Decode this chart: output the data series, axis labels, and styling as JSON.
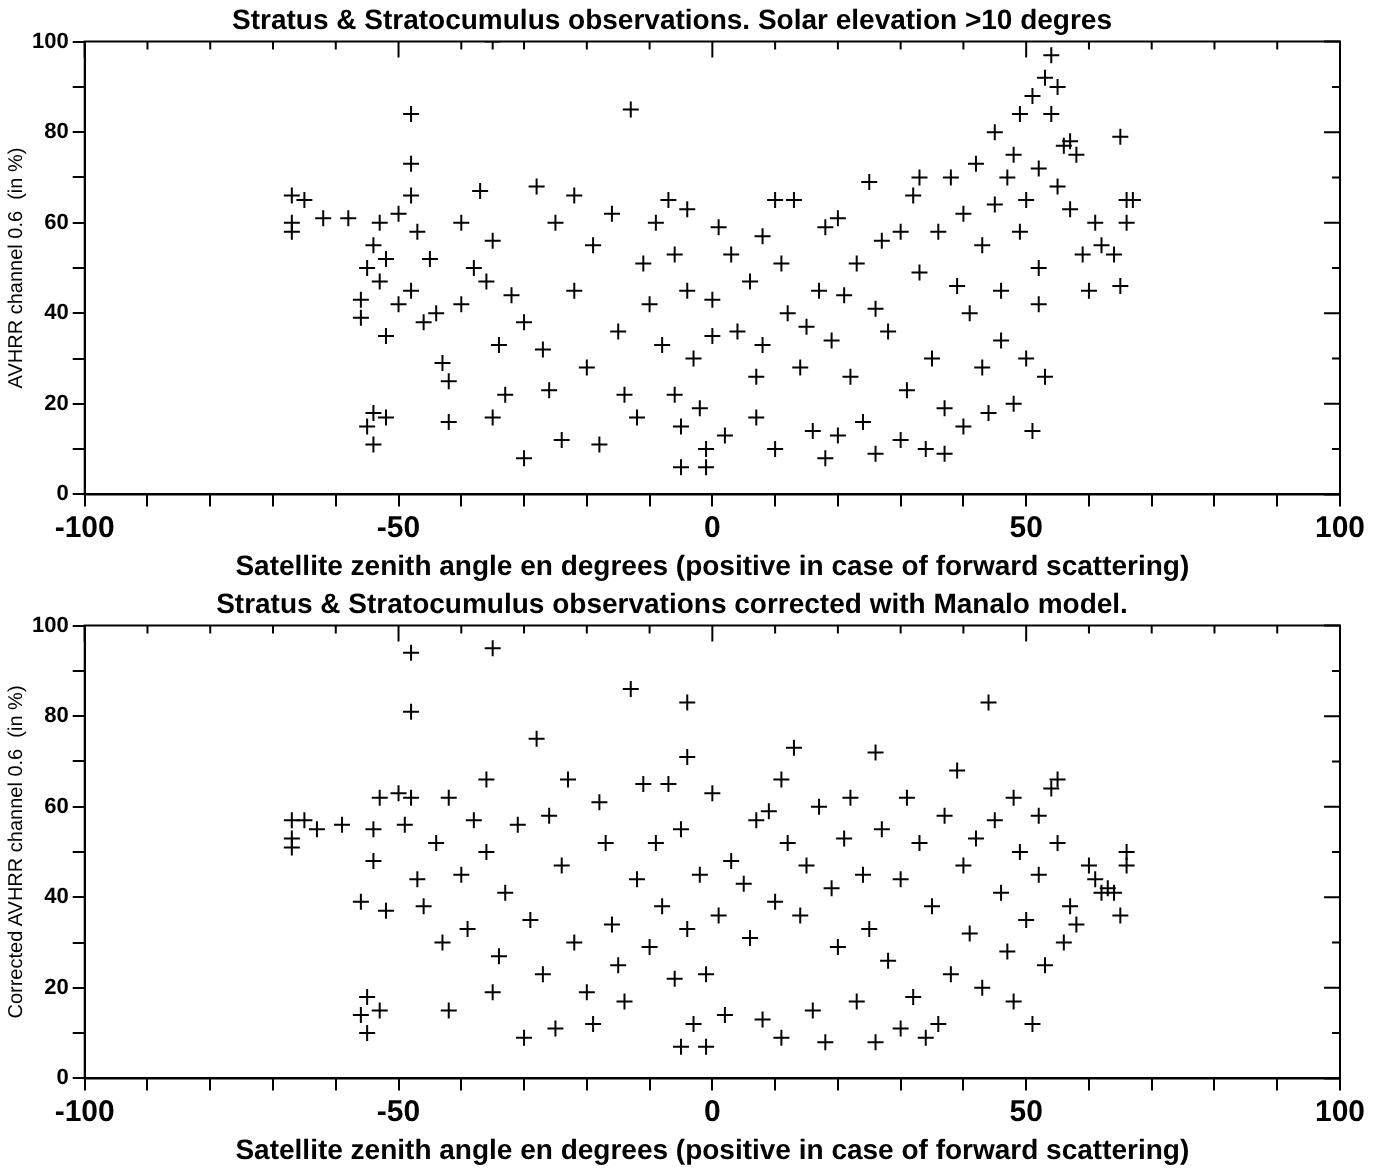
{
  "chart_data": [
    {
      "type": "scatter",
      "title": "Stratus & Stratocumulus observations. Solar elevation >10 degres",
      "xlabel": "Satellite zenith angle en degrees (positive in case of forward scattering)",
      "ylabel": "AVHRR channel 0.6  (in %)",
      "marker": "cross",
      "color": "#000000",
      "grid": false,
      "legend": false,
      "xlim": [
        -100,
        100
      ],
      "ylim": [
        0,
        100
      ],
      "xticks": [
        -100,
        {
          "value": -90,
          "label": null
        },
        {
          "value": -80,
          "label": null
        },
        {
          "value": -70,
          "label": null
        },
        {
          "value": -60,
          "label": null
        },
        -50,
        {
          "value": -40,
          "label": null
        },
        {
          "value": -30,
          "label": null
        },
        {
          "value": -20,
          "label": null
        },
        {
          "value": -10,
          "label": null
        },
        0,
        {
          "value": 10,
          "label": null
        },
        {
          "value": 20,
          "label": null
        },
        {
          "value": 30,
          "label": null
        },
        {
          "value": 40,
          "label": null
        },
        50,
        {
          "value": 60,
          "label": null
        },
        {
          "value": 70,
          "label": null
        },
        {
          "value": 80,
          "label": null
        },
        {
          "value": 90,
          "label": null
        },
        100
      ],
      "yticks": [
        0,
        {
          "value": 10,
          "label": null
        },
        20,
        {
          "value": 30,
          "label": null
        },
        40,
        {
          "value": 50,
          "label": null
        },
        60,
        {
          "value": 70,
          "label": null
        },
        80,
        {
          "value": 90,
          "label": null
        },
        100
      ],
      "x": [
        -67,
        -67,
        -67,
        -65,
        -62,
        -58,
        -56,
        -56,
        -55,
        -54,
        -53,
        -53,
        -52,
        -52,
        -55,
        -54,
        -54,
        -52,
        -50,
        -50,
        -48,
        -48,
        -48,
        -48,
        -47,
        -46,
        -45,
        -44,
        -43,
        -42,
        -42,
        -40,
        -40,
        -38,
        -37,
        -36,
        -35,
        -35,
        -35,
        -34,
        -33,
        -32,
        -30,
        -30,
        -28,
        -27,
        -26,
        -25,
        -24,
        -22,
        -22,
        -20,
        -19,
        -18,
        -16,
        -15,
        -14,
        -13,
        -12,
        -11,
        -10,
        -9,
        -8,
        -7,
        -6,
        -6,
        -5,
        -5,
        -4,
        -4,
        -3,
        -2,
        -1,
        -1,
        0,
        0,
        1,
        2,
        3,
        4,
        6,
        7,
        7,
        8,
        8,
        10,
        10,
        11,
        12,
        13,
        14,
        15,
        16,
        17,
        18,
        18,
        19,
        20,
        20,
        21,
        22,
        23,
        24,
        25,
        26,
        26,
        27,
        28,
        30,
        30,
        31,
        32,
        33,
        33,
        34,
        35,
        36,
        37,
        37,
        38,
        39,
        40,
        40,
        41,
        42,
        43,
        43,
        44,
        45,
        45,
        46,
        46,
        47,
        48,
        48,
        49,
        49,
        50,
        50,
        51,
        51,
        52,
        52,
        52,
        53,
        53,
        54,
        54,
        55,
        55,
        56,
        57,
        57,
        58,
        59,
        60,
        61,
        62,
        64,
        65,
        65,
        66,
        66,
        67
      ],
      "values": [
        66,
        60,
        58,
        65,
        61,
        61,
        43,
        39,
        50,
        55,
        60,
        47,
        52,
        35,
        15,
        18,
        11,
        17,
        42,
        62,
        84,
        73,
        66,
        45,
        58,
        38,
        52,
        40,
        29,
        25,
        16,
        42,
        60,
        50,
        67,
        47,
        100,
        56,
        17,
        33,
        22,
        44,
        8,
        38,
        68,
        32,
        23,
        60,
        12,
        66,
        45,
        28,
        55,
        11,
        62,
        36,
        22,
        85,
        17,
        51,
        42,
        60,
        33,
        65,
        53,
        22,
        15,
        6,
        63,
        45,
        30,
        19,
        10,
        6,
        43,
        35,
        59,
        13,
        53,
        36,
        47,
        26,
        17,
        57,
        33,
        10,
        65,
        51,
        40,
        65,
        28,
        37,
        14,
        45,
        59,
        8,
        34,
        13,
        61,
        44,
        26,
        51,
        16,
        69,
        9,
        41,
        56,
        36,
        12,
        58,
        23,
        66,
        49,
        70,
        10,
        30,
        58,
        19,
        9,
        70,
        46,
        62,
        15,
        40,
        73,
        55,
        28,
        18,
        80,
        64,
        45,
        34,
        70,
        75,
        20,
        84,
        58,
        65,
        30,
        14,
        88,
        72,
        50,
        42,
        92,
        26,
        97,
        84,
        68,
        90,
        77,
        63,
        78,
        75,
        53,
        45,
        60,
        55,
        53,
        46,
        79,
        60,
        65,
        65
      ]
    },
    {
      "type": "scatter",
      "title": "Stratus & Stratocumulus observations corrected with Manalo model.",
      "xlabel": "Satellite zenith angle en degrees (positive in case of forward scattering)",
      "ylabel": "Corrected AVHRR channel 0.6  (in %)",
      "marker": "cross",
      "color": "#000000",
      "grid": false,
      "legend": false,
      "xlim": [
        -100,
        100
      ],
      "ylim": [
        0,
        100
      ],
      "xticks": [
        -100,
        {
          "value": -90,
          "label": null
        },
        {
          "value": -80,
          "label": null
        },
        {
          "value": -70,
          "label": null
        },
        {
          "value": -60,
          "label": null
        },
        -50,
        {
          "value": -40,
          "label": null
        },
        {
          "value": -30,
          "label": null
        },
        {
          "value": -20,
          "label": null
        },
        {
          "value": -10,
          "label": null
        },
        0,
        {
          "value": 10,
          "label": null
        },
        {
          "value": 20,
          "label": null
        },
        {
          "value": 30,
          "label": null
        },
        {
          "value": 40,
          "label": null
        },
        50,
        {
          "value": 60,
          "label": null
        },
        {
          "value": 70,
          "label": null
        },
        {
          "value": 80,
          "label": null
        },
        {
          "value": 90,
          "label": null
        },
        100
      ],
      "yticks": [
        0,
        {
          "value": 10,
          "label": null
        },
        20,
        {
          "value": 30,
          "label": null
        },
        40,
        {
          "value": 50,
          "label": null
        },
        60,
        {
          "value": 70,
          "label": null
        },
        80,
        {
          "value": 90,
          "label": null
        },
        100
      ],
      "x": [
        -67,
        -67,
        -67,
        -65,
        -63,
        -59,
        -56,
        -56,
        -55,
        -55,
        -54,
        -54,
        -53,
        -53,
        -52,
        -50,
        -49,
        -48,
        -48,
        -48,
        -47,
        -46,
        -44,
        -43,
        -42,
        -42,
        -40,
        -39,
        -38,
        -36,
        -36,
        -35,
        -35,
        -34,
        -33,
        -31,
        -30,
        -29,
        -28,
        -27,
        -26,
        -25,
        -24,
        -23,
        -22,
        -20,
        -19,
        -18,
        -17,
        -16,
        -15,
        -14,
        -13,
        -12,
        -11,
        -10,
        -9,
        -8,
        -7,
        -6,
        -5,
        -5,
        -4,
        -4,
        -4,
        -3,
        -2,
        -1,
        -1,
        0,
        1,
        2,
        3,
        5,
        6,
        7,
        8,
        9,
        10,
        11,
        11,
        12,
        13,
        14,
        15,
        16,
        17,
        18,
        19,
        20,
        21,
        22,
        23,
        24,
        25,
        26,
        26,
        27,
        28,
        30,
        30,
        31,
        32,
        33,
        34,
        35,
        36,
        37,
        38,
        39,
        40,
        41,
        42,
        43,
        44,
        45,
        46,
        47,
        48,
        48,
        49,
        50,
        51,
        52,
        52,
        53,
        54,
        55,
        55,
        56,
        57,
        58,
        60,
        61,
        62,
        63,
        64,
        65,
        66,
        66
      ],
      "values": [
        57,
        53,
        51,
        57,
        55,
        56,
        39,
        14,
        18,
        10,
        55,
        48,
        15,
        62,
        37,
        63,
        56,
        94,
        81,
        62,
        44,
        38,
        52,
        30,
        15,
        62,
        45,
        33,
        57,
        66,
        50,
        95,
        19,
        27,
        41,
        56,
        9,
        35,
        75,
        23,
        58,
        11,
        47,
        66,
        30,
        19,
        12,
        61,
        52,
        34,
        25,
        17,
        86,
        44,
        65,
        29,
        52,
        38,
        65,
        22,
        7,
        55,
        83,
        71,
        33,
        12,
        45,
        7,
        23,
        63,
        36,
        14,
        48,
        43,
        31,
        57,
        13,
        59,
        39,
        9,
        66,
        52,
        73,
        36,
        47,
        15,
        60,
        8,
        42,
        29,
        53,
        62,
        17,
        45,
        33,
        72,
        8,
        55,
        26,
        11,
        44,
        62,
        18,
        52,
        9,
        38,
        12,
        58,
        23,
        68,
        47,
        32,
        53,
        20,
        83,
        57,
        41,
        28,
        62,
        17,
        50,
        35,
        12,
        58,
        45,
        25,
        64,
        66,
        52,
        30,
        38,
        34,
        47,
        44,
        41,
        42,
        41,
        36,
        50,
        47
      ]
    }
  ]
}
